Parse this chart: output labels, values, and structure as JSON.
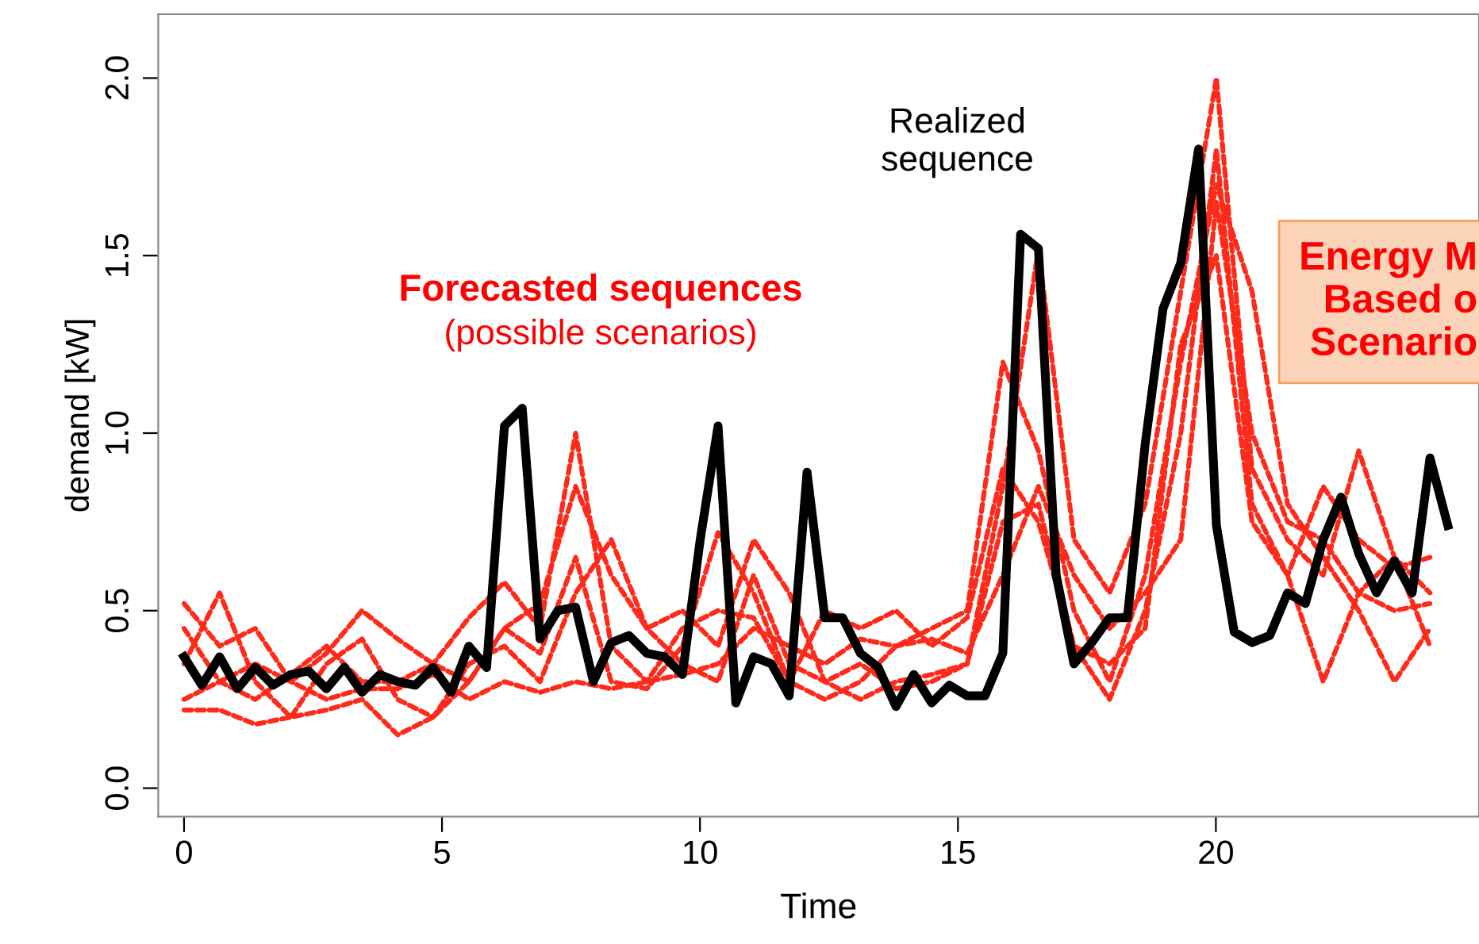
{
  "chart_data": {
    "type": "line",
    "xlabel": "Time",
    "ylabel": "demand [kW]",
    "xlim": [
      -0.5,
      25.1
    ],
    "ylim": [
      -0.08,
      2.18
    ],
    "xticks": [
      0,
      5,
      10,
      15,
      20
    ],
    "yticks": [
      {
        "value": 0,
        "label": "0.0"
      },
      {
        "value": 0.5,
        "label": "0.5"
      },
      {
        "value": 1,
        "label": "1.0"
      },
      {
        "value": 1.5,
        "label": "1.5"
      },
      {
        "value": 2,
        "label": "2.0"
      }
    ],
    "grid": false,
    "legend": false,
    "annotations": [
      "Forecasted sequences",
      "(possible scenarios)",
      "Realized\nsequence",
      "Energy M\nBased o\nScenario"
    ],
    "series": [
      {
        "color": "#ff2a1a",
        "line_style": "dotted",
        "x": [
          0,
          0.69,
          1.38,
          2.07,
          2.76,
          3.45,
          4.14,
          4.83,
          5.52,
          6.21,
          6.9,
          7.59,
          8.28,
          8.97,
          9.66,
          10.35,
          11.04,
          11.73,
          12.42,
          13.11,
          13.8,
          14.49,
          15.18,
          15.87,
          16.56,
          17.25,
          17.94,
          18.63,
          19.32,
          20.01,
          20.7,
          21.39,
          22.08,
          22.77,
          23.46,
          24.15
        ],
        "values": [
          0.52,
          0.4,
          0.45,
          0.3,
          0.38,
          0.5,
          0.42,
          0.35,
          0.3,
          0.45,
          0.52,
          0.85,
          0.6,
          0.45,
          0.5,
          0.4,
          0.7,
          0.55,
          0.3,
          0.35,
          0.28,
          0.3,
          0.35,
          0.85,
          1.52,
          0.7,
          0.55,
          0.8,
          1.4,
          2.0,
          0.9,
          0.7,
          0.6,
          0.95,
          0.65,
          0.55
        ]
      },
      {
        "color": "#ff2a1a",
        "line_style": "dotted",
        "x": [
          0,
          0.69,
          1.38,
          2.07,
          2.76,
          3.45,
          4.14,
          4.83,
          5.52,
          6.21,
          6.9,
          7.59,
          8.28,
          8.97,
          9.66,
          10.35,
          11.04,
          11.73,
          12.42,
          13.11,
          13.8,
          14.49,
          15.18,
          15.87,
          16.56,
          17.25,
          17.94,
          18.63,
          19.32,
          20.01,
          20.7,
          21.39,
          22.08,
          22.77,
          23.46,
          24.15
        ],
        "values": [
          0.22,
          0.22,
          0.18,
          0.2,
          0.22,
          0.25,
          0.15,
          0.2,
          0.3,
          0.45,
          0.38,
          0.65,
          0.3,
          0.28,
          0.4,
          0.72,
          0.55,
          0.3,
          0.25,
          0.3,
          0.4,
          0.45,
          0.5,
          1.2,
          0.95,
          0.5,
          0.3,
          0.6,
          1.2,
          1.7,
          1.4,
          0.8,
          0.65,
          0.5,
          0.3,
          0.45
        ]
      },
      {
        "color": "#ff2a1a",
        "line_style": "dotted",
        "x": [
          0,
          0.69,
          1.38,
          2.07,
          2.76,
          3.45,
          4.14,
          4.83,
          5.52,
          6.21,
          6.9,
          7.59,
          8.28,
          8.97,
          9.66,
          10.35,
          11.04,
          11.73,
          12.42,
          13.11,
          13.8,
          14.49,
          15.18,
          15.87,
          16.56,
          17.25,
          17.94,
          18.63,
          19.32,
          20.01,
          20.7,
          21.39,
          22.08,
          22.77,
          23.46,
          24.15
        ],
        "values": [
          0.45,
          0.3,
          0.25,
          0.32,
          0.4,
          0.3,
          0.3,
          0.35,
          0.48,
          0.58,
          0.45,
          1.0,
          0.4,
          0.3,
          0.45,
          0.5,
          0.48,
          0.3,
          0.5,
          0.45,
          0.5,
          0.4,
          0.48,
          0.9,
          0.75,
          0.4,
          0.25,
          0.5,
          1.0,
          1.8,
          0.8,
          0.6,
          0.85,
          0.7,
          0.62,
          0.65
        ]
      },
      {
        "color": "#ff2a1a",
        "line_style": "dotted",
        "x": [
          0,
          0.69,
          1.38,
          2.07,
          2.76,
          3.45,
          4.14,
          4.83,
          5.52,
          6.21,
          6.9,
          7.59,
          8.28,
          8.97,
          9.66,
          10.35,
          11.04,
          11.73,
          12.42,
          13.11,
          13.8,
          14.49,
          15.18,
          15.87,
          16.56,
          17.25,
          17.94,
          18.63,
          19.32,
          20.01,
          20.7,
          21.39,
          22.08,
          22.77,
          23.46,
          24.15
        ],
        "values": [
          0.35,
          0.55,
          0.3,
          0.2,
          0.35,
          0.42,
          0.25,
          0.2,
          0.35,
          0.4,
          0.3,
          0.55,
          0.7,
          0.45,
          0.35,
          0.3,
          0.6,
          0.35,
          0.3,
          0.25,
          0.3,
          0.32,
          0.35,
          0.75,
          0.8,
          0.4,
          0.35,
          0.45,
          1.25,
          1.5,
          0.75,
          0.6,
          0.3,
          0.55,
          0.65,
          0.4
        ]
      },
      {
        "color": "#ff2a1a",
        "line_style": "dotted",
        "x": [
          0,
          0.69,
          1.38,
          2.07,
          2.76,
          3.45,
          4.14,
          4.83,
          5.52,
          6.21,
          6.9,
          7.59,
          8.28,
          8.97,
          9.66,
          10.35,
          11.04,
          11.73,
          12.42,
          13.11,
          13.8,
          14.49,
          15.18,
          15.87,
          16.56,
          17.25,
          17.94,
          18.63,
          19.32,
          20.01,
          20.7,
          21.39,
          22.08,
          22.77,
          23.46,
          24.15
        ],
        "values": [
          0.25,
          0.3,
          0.35,
          0.3,
          0.25,
          0.28,
          0.28,
          0.32,
          0.25,
          0.3,
          0.27,
          0.3,
          0.28,
          0.3,
          0.32,
          0.35,
          0.45,
          0.4,
          0.35,
          0.42,
          0.4,
          0.42,
          0.38,
          0.6,
          0.85,
          0.6,
          0.45,
          0.55,
          0.7,
          1.65,
          1.0,
          0.75,
          0.7,
          0.55,
          0.5,
          0.52
        ]
      },
      {
        "color": "#000000",
        "line_style": "solid",
        "x": [
          0,
          0.345,
          0.69,
          1.035,
          1.38,
          1.725,
          2.07,
          2.415,
          2.76,
          3.105,
          3.45,
          3.795,
          4.14,
          4.485,
          4.83,
          5.175,
          5.52,
          5.865,
          6.21,
          6.555,
          6.9,
          7.245,
          7.59,
          7.935,
          8.28,
          8.625,
          8.97,
          9.315,
          9.66,
          10.005,
          10.35,
          10.695,
          11.04,
          11.385,
          11.73,
          12.075,
          12.42,
          12.765,
          13.11,
          13.455,
          13.8,
          14.145,
          14.49,
          14.835,
          15.18,
          15.525,
          15.87,
          16.215,
          16.56,
          16.905,
          17.25,
          17.595,
          17.94,
          18.285,
          18.63,
          18.975,
          19.32,
          19.665,
          20.01,
          20.355,
          20.7,
          21.045,
          21.39,
          21.735,
          22.08,
          22.425,
          22.77,
          23.115,
          23.46,
          23.805,
          24.15,
          24.495
        ],
        "values": [
          0.37,
          0.29,
          0.37,
          0.28,
          0.34,
          0.29,
          0.32,
          0.33,
          0.28,
          0.34,
          0.27,
          0.32,
          0.3,
          0.29,
          0.34,
          0.27,
          0.4,
          0.34,
          1.02,
          1.07,
          0.42,
          0.5,
          0.51,
          0.3,
          0.41,
          0.43,
          0.38,
          0.37,
          0.32,
          0.7,
          1.02,
          0.24,
          0.37,
          0.35,
          0.26,
          0.89,
          0.48,
          0.48,
          0.38,
          0.34,
          0.23,
          0.32,
          0.24,
          0.29,
          0.26,
          0.26,
          0.38,
          1.56,
          1.52,
          0.6,
          0.35,
          0.41,
          0.48,
          0.48,
          0.97,
          1.35,
          1.48,
          1.8,
          0.74,
          0.44,
          0.41,
          0.43,
          0.55,
          0.52,
          0.7,
          0.82,
          0.66,
          0.55,
          0.64,
          0.55,
          0.93,
          0.74
        ]
      }
    ]
  }
}
